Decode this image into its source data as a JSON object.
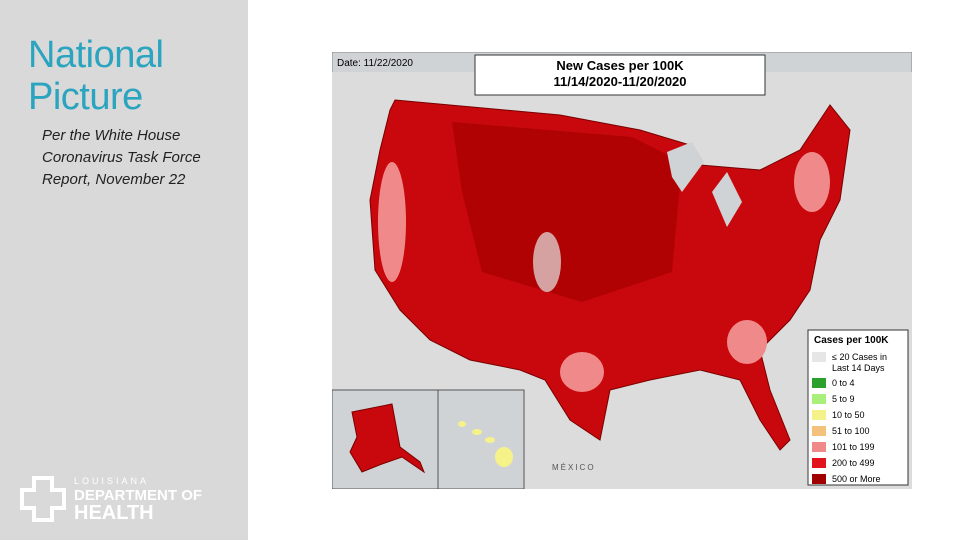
{
  "side": {
    "title_lines": [
      "National",
      "Picture"
    ],
    "subtitle_lines": [
      "Per the White House",
      "Coronavirus Task Force",
      "Report, November 22"
    ],
    "logo": {
      "state": "LOUISIANA",
      "line1": "DEPARTMENT OF",
      "line2": "HEALTH"
    }
  },
  "map": {
    "date": "Date: 11/22/2020",
    "title": "New Cases per 100K",
    "period": "11/14/2020-11/20/2020",
    "country_label": "MÉXICO",
    "legend": {
      "title": "Cases per 100K",
      "items": [
        {
          "label": "≤ 20 Cases in Last 14 Days",
          "color": "#e6e6e6"
        },
        {
          "label": "0 to 4",
          "color": "#2ca02c"
        },
        {
          "label": "5 to 9",
          "color": "#a8f07a"
        },
        {
          "label": "10 to 50",
          "color": "#f6f28a"
        },
        {
          "label": "51 to 100",
          "color": "#f5c27e"
        },
        {
          "label": "101 to 199",
          "color": "#f08a8a"
        },
        {
          "label": "200 to 499",
          "color": "#e0141a"
        },
        {
          "label": "500 or More",
          "color": "#a00000"
        }
      ]
    }
  }
}
